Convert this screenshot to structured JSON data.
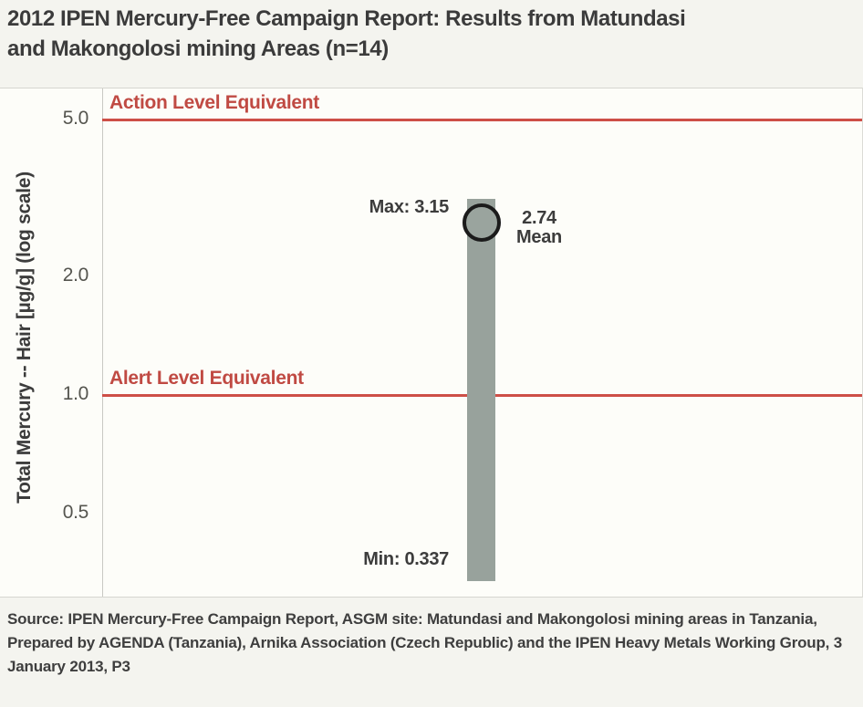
{
  "page": {
    "title_lines": [
      "2012 IPEN Mercury-Free Campaign Report: Results from Matundasi",
      "and Makongolosi mining Areas (n=14)"
    ],
    "source": "Source: IPEN Mercury-Free Campaign Report, ASGM site: Matundasi and Makongolosi mining areas in Tanzania, Prepared by AGENDA (Tanzania), Arnika Association (Czech Republic) and the IPEN Heavy Metals Working Group, 3 January 2013, P3"
  },
  "chart_data": {
    "type": "bar",
    "subtype": "min-max range bar with mean marker",
    "title": "2012 IPEN Mercury-Free Campaign Report: Results from Matundasi and Makongolosi mining Areas (n=14)",
    "ylabel": "Total Mercury -- Hair [µg/g] (log scale)",
    "yscale": "log",
    "ylim": [
      0.31,
      6.0
    ],
    "yticks": [
      5.0,
      2.0,
      1.0,
      0.5
    ],
    "ytick_labels": [
      "5.0",
      "2.0",
      "1.0",
      "0.5"
    ],
    "n": 14,
    "series": [
      {
        "name": "Matundasi and Makongolosi mining areas",
        "min": 0.337,
        "max": 3.15,
        "mean": 2.74
      }
    ],
    "reference_lines": [
      {
        "label": "Action Level Equivalent",
        "value": 5.0,
        "color": "#cd4f47"
      },
      {
        "label": "Alert Level Equivalent",
        "value": 1.0,
        "color": "#cd4f47"
      }
    ],
    "annotations": {
      "max": "Max: 3.15",
      "mean_value": "2.74",
      "mean_caption": "Mean",
      "min": "Min: 0.337"
    },
    "legend": "none",
    "grid": "off",
    "colors": {
      "bar": "#98a29c",
      "mean_circle_stroke": "#1b1b1b",
      "reference": "#cd4f47",
      "text": "#3c3c3c"
    }
  }
}
